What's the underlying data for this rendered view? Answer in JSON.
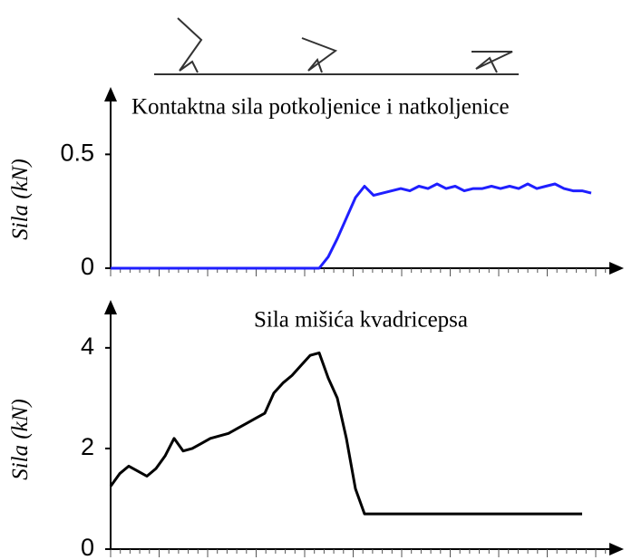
{
  "chart_data": [
    {
      "type": "line",
      "title": "Kontaktna sila potkoljenice i natkoljenice",
      "y_label": "Sila (kN)",
      "color": "#1f1fff",
      "values": [
        0,
        0,
        0,
        0,
        0,
        0,
        0,
        0,
        0,
        0,
        0,
        0,
        0,
        0,
        0,
        0,
        0,
        0,
        0,
        0,
        0,
        0,
        0,
        0,
        0.05,
        0.13,
        0.22,
        0.31,
        0.36,
        0.32,
        0.33,
        0.34,
        0.35,
        0.34,
        0.36,
        0.35,
        0.37,
        0.35,
        0.36,
        0.34,
        0.35,
        0.35,
        0.36,
        0.35,
        0.36,
        0.35,
        0.37,
        0.35,
        0.36,
        0.37,
        0.35,
        0.34,
        0.34,
        0.33
      ],
      "ylim": [
        0,
        0.78
      ],
      "yticks": [
        0,
        0.5
      ]
    },
    {
      "type": "line",
      "title": "Sila mišića kvadricepsa",
      "y_label": "Sila (kN)",
      "color": "#000000",
      "values": [
        1.25,
        1.5,
        1.65,
        1.55,
        1.45,
        1.6,
        1.85,
        2.2,
        1.95,
        2.0,
        2.1,
        2.2,
        2.25,
        2.3,
        2.4,
        2.5,
        2.6,
        2.7,
        3.1,
        3.3,
        3.45,
        3.65,
        3.85,
        3.9,
        3.4,
        3.0,
        2.2,
        1.2,
        0.7,
        0.7,
        0.7,
        0.7,
        0.7,
        0.7,
        0.7,
        0.7,
        0.7,
        0.7,
        0.7,
        0.7,
        0.7,
        0.7,
        0.7,
        0.7,
        0.7,
        0.7,
        0.7,
        0.7,
        0.7,
        0.7,
        0.7,
        0.7,
        0.7
      ],
      "ylim": [
        0,
        4.88
      ],
      "yticks": [
        0,
        2,
        4
      ]
    }
  ]
}
